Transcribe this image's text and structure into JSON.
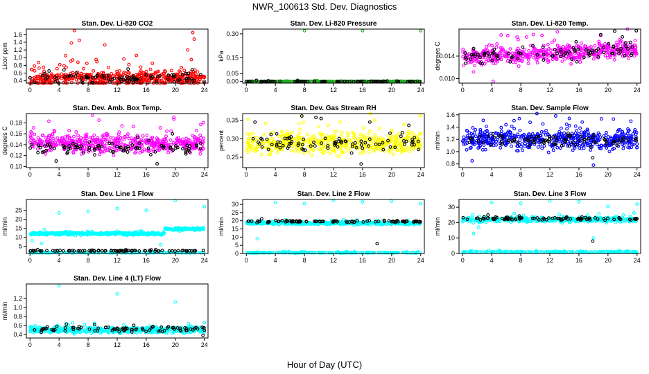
{
  "figure": {
    "title": "NWR_100613  Std. Dev. Diagnostics",
    "xlabel": "Hour of Day (UTC)"
  },
  "chart_data": [
    {
      "type": "scatter",
      "title": "Stan. Dev. Li-820 CO2",
      "ylabel": "Licor ppm",
      "xlim": [
        -0.5,
        24.5
      ],
      "ylim": [
        0.34,
        1.74
      ],
      "xticks": [
        "0",
        "4",
        "8",
        "12",
        "16",
        "20",
        "24"
      ],
      "yticks": [
        "0.4",
        "0.6",
        "0.8",
        "1.0",
        "1.2",
        "1.4",
        "1.6"
      ],
      "series": [
        {
          "color": "#ff0000",
          "base": 0.46,
          "spread": 0.14,
          "outliers": [
            [
              6.1,
              1.7
            ],
            [
              5.7,
              1.38
            ],
            [
              6.8,
              1.45
            ],
            [
              10.3,
              1.33
            ],
            [
              4.9,
              1.05
            ],
            [
              9.1,
              0.95
            ],
            [
              22.4,
              1.65
            ],
            [
              22.6,
              1.48
            ],
            [
              21.7,
              1.2
            ],
            [
              22.2,
              0.95
            ],
            [
              6.6,
              0.88
            ],
            [
              4.1,
              0.82
            ]
          ],
          "n": 520
        },
        {
          "color": "#000000",
          "base": 0.47,
          "spread": 0.1,
          "outliers": [],
          "n": 90
        }
      ]
    },
    {
      "type": "scatter",
      "title": "Stan. Dev. Li-820 Pressure",
      "ylabel": "kPa",
      "xlim": [
        -0.5,
        24.5
      ],
      "ylim": [
        -0.01,
        0.33
      ],
      "xticks": [
        "0",
        "4",
        "8",
        "12",
        "16",
        "20",
        "24"
      ],
      "yticks": [
        "0.00",
        "0.05",
        "0.15",
        "0.30"
      ],
      "series": [
        {
          "color": "#22aa22",
          "base": 0.0,
          "spread": 0.002,
          "outliers": [
            [
              8,
              0.32
            ],
            [
              16,
              0.32
            ],
            [
              24,
              0.32
            ],
            [
              0,
              0.0
            ]
          ],
          "n": 420
        },
        {
          "color": "#000000",
          "base": 0.0,
          "spread": 0.002,
          "outliers": [],
          "n": 80
        }
      ]
    },
    {
      "type": "scatter",
      "title": "Stan. Dev. Li-820 Temp.",
      "ylabel": "degrees C",
      "xlim": [
        -0.5,
        24.5
      ],
      "ylim": [
        0.0092,
        0.0188
      ],
      "xticks": [
        "0",
        "4",
        "8",
        "12",
        "16",
        "20",
        "24"
      ],
      "yticks": [
        "0.010",
        "0.014"
      ],
      "series": [
        {
          "color": "#ff00ff",
          "base": 0.0138,
          "spread": 0.0012,
          "trend": 6e-05,
          "outliers": [
            [
              4.2,
              0.0095
            ],
            [
              1.5,
              0.0112
            ]
          ],
          "n": 520
        },
        {
          "color": "#000000",
          "base": 0.0138,
          "spread": 0.0011,
          "trend": 6e-05,
          "outliers": [
            [
              23.9,
              0.0185
            ],
            [
              19.0,
              0.0178
            ]
          ],
          "n": 90
        }
      ]
    },
    {
      "type": "scatter",
      "title": "Stan. Dev. Amb. Box Temp.",
      "ylabel": "degrees C",
      "xlim": [
        -0.5,
        24.5
      ],
      "ylim": [
        0.098,
        0.197
      ],
      "xticks": [
        "0",
        "4",
        "8",
        "12",
        "16",
        "20",
        "24"
      ],
      "yticks": [
        "0.10",
        "0.12",
        "0.14",
        "0.16",
        "0.18"
      ],
      "series": [
        {
          "color": "#ff00ff",
          "base": 0.143,
          "spread": 0.014,
          "outliers": [
            [
              8.6,
              0.194
            ],
            [
              19.8,
              0.19
            ],
            [
              9.5,
              0.185
            ],
            [
              2.6,
              0.183
            ]
          ],
          "n": 520
        },
        {
          "color": "#000000",
          "base": 0.134,
          "spread": 0.009,
          "outliers": [
            [
              3.6,
              0.11
            ],
            [
              17.5,
              0.105
            ]
          ],
          "n": 90
        }
      ]
    },
    {
      "type": "scatter",
      "title": "Stan. Dev. Gas Stream RH",
      "ylabel": "percent",
      "xlim": [
        -0.5,
        24.5
      ],
      "ylim": [
        0.222,
        0.368
      ],
      "xticks": [
        "0",
        "4",
        "8",
        "12",
        "16",
        "20",
        "24"
      ],
      "yticks": [
        "0.25",
        "0.30",
        "0.35"
      ],
      "series": [
        {
          "color": "#ffff00",
          "base": 0.288,
          "spread": 0.022,
          "outliers": [
            [
              7.6,
              0.362
            ],
            [
              23.9,
              0.362
            ],
            [
              12.9,
              0.345
            ],
            [
              17.6,
              0.35
            ]
          ],
          "n": 520
        },
        {
          "color": "#000000",
          "base": 0.29,
          "spread": 0.02,
          "outliers": [
            [
              15.8,
              0.232
            ],
            [
              17.0,
              0.345
            ]
          ],
          "n": 90
        }
      ]
    },
    {
      "type": "scatter",
      "title": "Stan. Dev. Sample Flow",
      "ylabel": "ml/min",
      "xlim": [
        -0.5,
        24.5
      ],
      "ylim": [
        0.74,
        1.62
      ],
      "xticks": [
        "0",
        "4",
        "8",
        "12",
        "16",
        "20",
        "24"
      ],
      "yticks": [
        "0.8",
        "1.0",
        "1.2",
        "1.4",
        "1.6"
      ],
      "series": [
        {
          "color": "#0000ff",
          "base": 1.2,
          "spread": 0.13,
          "outliers": [
            [
              18.0,
              0.78
            ],
            [
              1.3,
              0.85
            ],
            [
              12.8,
              1.58
            ]
          ],
          "n": 520
        },
        {
          "color": "#000000",
          "base": 1.18,
          "spread": 0.08,
          "outliers": [
            [
              17.9,
              0.9
            ]
          ],
          "n": 90
        }
      ]
    },
    {
      "type": "scatter",
      "title": "Stan. Dev. Line 1 Flow",
      "ylabel": "ml/min",
      "xlim": [
        -0.5,
        24.5
      ],
      "ylim": [
        1,
        31
      ],
      "xticks": [
        "0",
        "4",
        "8",
        "12",
        "16",
        "20",
        "24"
      ],
      "yticks": [
        "5",
        "10",
        "15",
        "20",
        "25"
      ],
      "series": [
        {
          "color": "#00ffff",
          "base": 12.0,
          "spread": 0.6,
          "step": [
            [
              18.5,
              14.5
            ]
          ],
          "outliers": [
            [
              4,
              23.5
            ],
            [
              8,
              24.5
            ],
            [
              12,
              26
            ],
            [
              16,
              25
            ],
            [
              20,
              30.5
            ],
            [
              24,
              27
            ],
            [
              1.6,
              6.5
            ],
            [
              0.3,
              8
            ],
            [
              18.0,
              6
            ]
          ],
          "n": 520
        },
        {
          "color": "#00ffff",
          "base": 1.5,
          "spread": 0.2,
          "outliers": [],
          "n": 200
        },
        {
          "color": "#000000",
          "base": 2.5,
          "spread": 0.25,
          "outliers": [],
          "n": 90
        }
      ]
    },
    {
      "type": "scatter",
      "title": "Stan. Dev. Line 2 Flow",
      "ylabel": "ml/min",
      "xlim": [
        -0.5,
        24.5
      ],
      "ylim": [
        0,
        33
      ],
      "xticks": [
        "0",
        "4",
        "8",
        "12",
        "16",
        "20",
        "24"
      ],
      "yticks": [
        "0",
        "5",
        "10",
        "15",
        "20",
        "25",
        "30"
      ],
      "series": [
        {
          "color": "#00ffff",
          "base": 18.5,
          "spread": 0.7,
          "outliers": [
            [
              4,
              31
            ],
            [
              8,
              30.5
            ],
            [
              12,
              32.5
            ],
            [
              16,
              31.5
            ],
            [
              20,
              32
            ],
            [
              24,
              30.5
            ],
            [
              1.5,
              9
            ]
          ],
          "n": 420
        },
        {
          "color": "#00ffff",
          "base": 0.5,
          "spread": 0.2,
          "outliers": [],
          "n": 220
        },
        {
          "color": "#000000",
          "base": 19.5,
          "spread": 0.5,
          "outliers": [
            [
              18.0,
              6
            ]
          ],
          "n": 90
        }
      ]
    },
    {
      "type": "scatter",
      "title": "Stan. Dev. Line 3 Flow",
      "ylabel": "ml/min",
      "xlim": [
        -0.5,
        24.5
      ],
      "ylim": [
        0,
        35
      ],
      "xticks": [
        "0",
        "4",
        "8",
        "12",
        "16",
        "20",
        "24"
      ],
      "yticks": [
        "0",
        "10",
        "20",
        "30"
      ],
      "series": [
        {
          "color": "#00ffff",
          "base": 22.0,
          "spread": 1.2,
          "outliers": [
            [
              4,
              33
            ],
            [
              8,
              32.5
            ],
            [
              12,
              34
            ],
            [
              16,
              33.5
            ],
            [
              20,
              30.5
            ],
            [
              24,
              32
            ],
            [
              1.5,
              13
            ],
            [
              2.2,
              17
            ],
            [
              18.0,
              10
            ]
          ],
          "n": 420
        },
        {
          "color": "#00ffff",
          "base": 1.0,
          "spread": 0.3,
          "outliers": [],
          "n": 220
        },
        {
          "color": "#000000",
          "base": 22.5,
          "spread": 0.8,
          "outliers": [
            [
              17.9,
              8
            ]
          ],
          "n": 90
        }
      ]
    },
    {
      "type": "scatter",
      "title": "Stan. Dev. Line 4 (LT) Flow",
      "ylabel": "ml/min",
      "xlim": [
        -0.5,
        24.5
      ],
      "ylim": [
        0.32,
        1.52
      ],
      "xticks": [
        "0",
        "4",
        "8",
        "12",
        "16",
        "20",
        "24"
      ],
      "yticks": [
        "0.4",
        "0.6",
        "0.8",
        "1.0",
        "1.2"
      ],
      "series": [
        {
          "color": "#00ffff",
          "base": 0.5,
          "spread": 0.055,
          "outliers": [
            [
              4,
              1.48
            ],
            [
              12,
              1.3
            ],
            [
              20,
              1.12
            ],
            [
              24,
              0.66
            ]
          ],
          "n": 520
        },
        {
          "color": "#000000",
          "base": 0.52,
          "spread": 0.05,
          "outliers": [
            [
              23.8,
              0.38
            ]
          ],
          "n": 90
        }
      ]
    }
  ]
}
